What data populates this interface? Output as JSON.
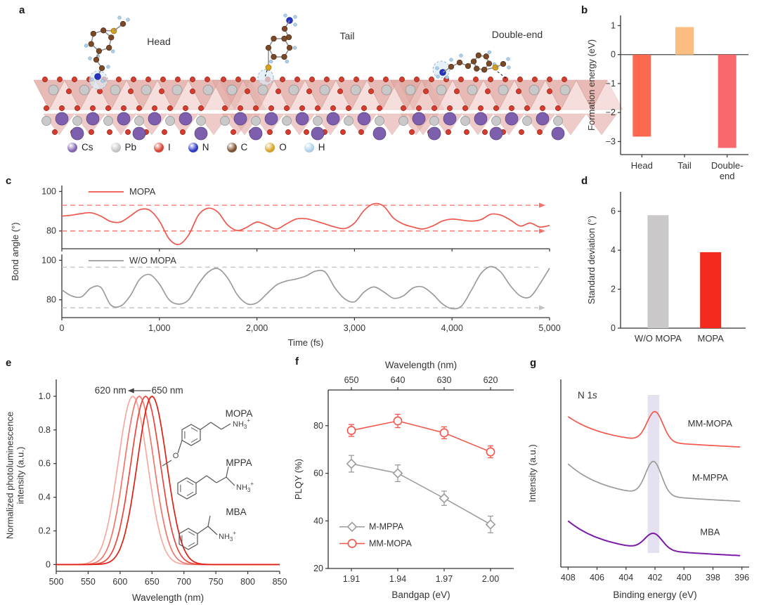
{
  "panel_labels": {
    "a": "a",
    "b": "b",
    "c": "c",
    "d": "d",
    "e": "e",
    "f": "f",
    "g": "g"
  },
  "panel_a": {
    "structures": [
      {
        "name": "Head"
      },
      {
        "name": "Tail"
      },
      {
        "name": "Double-end"
      }
    ],
    "atom_legend": [
      {
        "symbol": "Cs",
        "color": "#7e5fae"
      },
      {
        "symbol": "Pb",
        "color": "#c4c4c4"
      },
      {
        "symbol": "I",
        "color": "#d63b2c"
      },
      {
        "symbol": "N",
        "color": "#2433c4"
      },
      {
        "symbol": "C",
        "color": "#7a4a28"
      },
      {
        "symbol": "O",
        "color": "#d8a01d"
      },
      {
        "symbol": "H",
        "color": "#aed0ea"
      }
    ]
  },
  "chart_data": [
    {
      "panel": "b",
      "type": "bar",
      "categories": [
        "Head",
        "Tail",
        "Double-\nend"
      ],
      "values": [
        -2.83,
        0.95,
        -3.22
      ],
      "bar_colors": [
        "#fb6a50",
        "#fbbe80",
        "#f8696e"
      ],
      "ylabel": "Formation energy (eV)",
      "ylim": [
        -3.45,
        1.35
      ],
      "yticks": [
        1,
        0,
        -1,
        -2,
        -3
      ]
    },
    {
      "panel": "c",
      "type": "line",
      "xlabel": "Time (fs)",
      "ylabel": "Bond angle (°)",
      "xlim": [
        0,
        5000
      ],
      "xticks": [
        0,
        1000,
        2000,
        3000,
        4000,
        5000
      ],
      "xtick_labels": [
        "0",
        "1,000",
        "2,000",
        "3,000",
        "4,000",
        "5,000"
      ],
      "subplots": [
        {
          "name": "MOPA",
          "color": "#ef564c",
          "dash_color": "#f37168",
          "dashed_lines": [
            93,
            80
          ],
          "dash_arrows": [
            true,
            true
          ],
          "yticks": [
            100,
            80
          ],
          "ylim": [
            71,
            103
          ],
          "x_step": 100,
          "y": [
            87.5,
            88,
            88.8,
            89.2,
            87.5,
            84.8,
            84.5,
            87.5,
            90.8,
            90.5,
            85,
            76,
            73.2,
            78,
            88,
            91.5,
            89.5,
            83,
            80.2,
            82,
            84.5,
            83,
            81,
            83.5,
            86,
            86.2,
            85,
            83.5,
            82,
            81.2,
            84,
            90.5,
            93.8,
            92.5,
            86.5,
            83.5,
            82,
            81,
            82.5,
            85,
            86,
            85.5,
            85,
            85.8,
            88.5,
            88,
            85.5,
            82.5,
            84,
            82,
            82.8
          ]
        },
        {
          "name": "W/O MOPA",
          "color": "#9b9b9b",
          "dash_color": "#c2c2c2",
          "dashed_lines": [
            96.5,
            76
          ],
          "dash_arrows": [
            false,
            true
          ],
          "yticks": [
            100,
            80
          ],
          "ylim": [
            71,
            103
          ],
          "x_step": 100,
          "y": [
            85,
            82,
            81.5,
            86,
            86.3,
            77.5,
            76.8,
            82,
            90.5,
            92.8,
            88,
            80,
            77.8,
            80,
            88,
            94,
            95.8,
            91,
            82.5,
            78,
            78.5,
            83,
            87.5,
            89.5,
            90.5,
            92,
            94.5,
            94,
            86,
            80.5,
            79,
            84,
            86.5,
            84,
            80.8,
            82,
            86,
            86.5,
            83,
            78,
            75.5,
            77,
            85,
            93.5,
            96.8,
            94,
            87,
            82,
            81.5,
            88,
            96
          ]
        }
      ]
    },
    {
      "panel": "d",
      "type": "bar",
      "categories": [
        "W/O MOPA",
        "MOPA"
      ],
      "values": [
        5.8,
        3.9
      ],
      "bar_colors": [
        "#cac8c8",
        "#f3291e"
      ],
      "ylabel": "Standard deviation (°)",
      "ylim": [
        0,
        7
      ],
      "yticks": [
        0,
        2,
        4,
        6
      ]
    },
    {
      "panel": "e",
      "type": "line",
      "xlabel": "Wavelength (nm)",
      "ylabel": "Normalized photoluminescence\nintensity (a.u.)",
      "xlim": [
        500,
        850
      ],
      "xticks": [
        500,
        550,
        600,
        650,
        700,
        750,
        800,
        850
      ],
      "ylim": [
        -0.04,
        1.1
      ],
      "yticks": [
        1.0,
        0.8,
        0.6,
        0.4,
        0.2,
        0
      ],
      "ytick_labels": [
        "1.0",
        "0.8",
        "0.6",
        "0.4",
        "0.2",
        "0"
      ],
      "annotation": {
        "left_label": "620 nm",
        "right_label": "650 nm"
      },
      "peaks": [
        {
          "center": 620,
          "sigma": 23,
          "height": 1.0,
          "color": "#f8a89e"
        },
        {
          "center": 630,
          "sigma": 23,
          "height": 1.0,
          "color": "#f2756b"
        },
        {
          "center": 640,
          "sigma": 23,
          "height": 1.0,
          "color": "#ea453a"
        },
        {
          "center": 650,
          "sigma": 23,
          "height": 1.0,
          "color": "#e01e13"
        }
      ],
      "inset_molecules": [
        {
          "name": "MOPA",
          "amine": "NH3+"
        },
        {
          "name": "MPPA",
          "amine": "NH3+"
        },
        {
          "name": "MBA",
          "amine": "NH3+"
        }
      ]
    },
    {
      "panel": "f",
      "type": "scatter-line",
      "xlabel": "Bandgap (eV)",
      "ylabel": "PLQY (%)",
      "x": [
        1.91,
        1.94,
        1.97,
        2.0
      ],
      "xtick_labels": [
        "1.91",
        "1.94",
        "1.97",
        "2.00"
      ],
      "top_axis": {
        "label": "Wavelength (nm)",
        "tick_labels": [
          "650",
          "640",
          "630",
          "620"
        ]
      },
      "ylim": [
        20,
        95
      ],
      "yticks": [
        20,
        40,
        60,
        80
      ],
      "series": [
        {
          "name": "M-MPPA",
          "color": "#9b9b9b",
          "marker": "diamond",
          "values": [
            64,
            60,
            49.5,
            38.5
          ],
          "errors": [
            3.5,
            3.5,
            3,
            3.5
          ]
        },
        {
          "name": "MM-MOPA",
          "color": "#f4544a",
          "marker": "circle",
          "values": [
            78,
            82,
            77,
            69
          ],
          "errors": [
            2.5,
            2.8,
            2.5,
            2.5
          ]
        }
      ]
    },
    {
      "panel": "g",
      "type": "line",
      "xlabel": "Binding energy (eV)",
      "ylabel": "Intensity (a.u.)",
      "annotation": {
        "text": "N 1",
        "italic": "s"
      },
      "xlim": [
        408,
        396
      ],
      "xticks": [
        408,
        406,
        404,
        402,
        400,
        398,
        396
      ],
      "highlight_band": {
        "center": 402.1,
        "width": 0.8,
        "color": "#ded9ec"
      },
      "curves": [
        {
          "name": "MM-MOPA",
          "color": "#f4564c",
          "offset": 2.35,
          "peak_center_eV": 402.0,
          "peak_amplitude": 0.55,
          "peak_sigma": 0.55,
          "baseline_drop": 0.42
        },
        {
          "name": "M-MPPA",
          "color": "#9b9b9b",
          "offset": 1.35,
          "peak_center_eV": 402.1,
          "peak_amplitude": 0.62,
          "peak_sigma": 0.55,
          "baseline_drop": 0.55
        },
        {
          "name": "MBA",
          "color": "#7a1ca8",
          "offset": 0.35,
          "peak_center_eV": 402.1,
          "peak_amplitude": 0.3,
          "peak_sigma": 0.6,
          "baseline_drop": 0.5
        }
      ]
    }
  ]
}
